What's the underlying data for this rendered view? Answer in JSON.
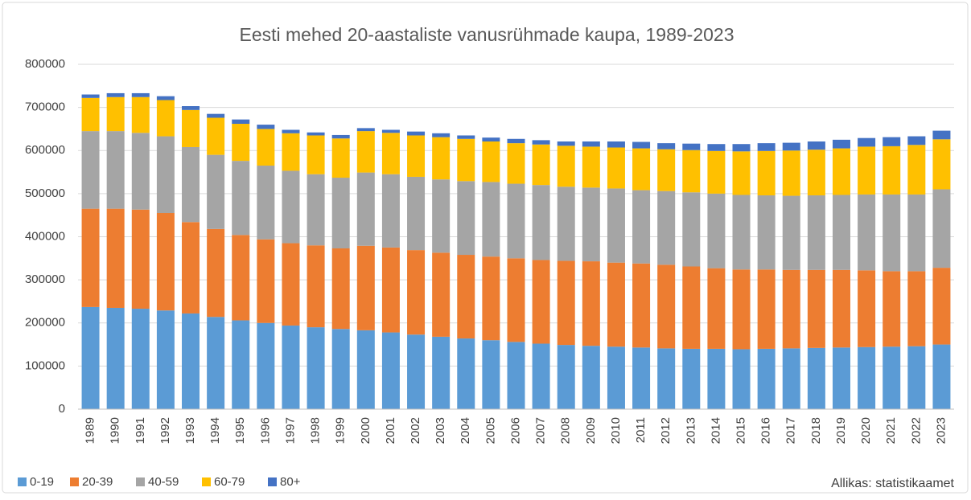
{
  "chart_data": {
    "type": "stacked_bar",
    "title": "Eesti mehed 20-aastaliste vanusrühmade kaupa, 1989-2023",
    "note": "Allikas: statistikaamet",
    "categories": [
      "1989",
      "1990",
      "1991",
      "1992",
      "1993",
      "1994",
      "1995",
      "1996",
      "1997",
      "1998",
      "1999",
      "2000",
      "2001",
      "2002",
      "2003",
      "2004",
      "2005",
      "2006",
      "2007",
      "2008",
      "2009",
      "2010",
      "2011",
      "2012",
      "2013",
      "2014",
      "2015",
      "2016",
      "2017",
      "2018",
      "2019",
      "2020",
      "2021",
      "2022",
      "2023"
    ],
    "series": [
      {
        "name": "0-19",
        "color": "#5b9bd5",
        "values": [
          237000,
          235000,
          233000,
          229000,
          222000,
          214000,
          206000,
          200000,
          194000,
          190000,
          186000,
          183000,
          178000,
          173000,
          168000,
          164000,
          160000,
          156000,
          152000,
          149000,
          147000,
          145000,
          143000,
          141000,
          140000,
          140000,
          139000,
          140000,
          141000,
          142000,
          143000,
          144000,
          145000,
          146000,
          150000
        ]
      },
      {
        "name": "20-39",
        "color": "#ed7d31",
        "values": [
          228000,
          230000,
          230000,
          226000,
          212000,
          204000,
          198000,
          194000,
          191000,
          190000,
          187000,
          196000,
          197000,
          196000,
          195000,
          194000,
          194000,
          194000,
          194000,
          195000,
          196000,
          195000,
          195000,
          194000,
          191000,
          187000,
          185000,
          184000,
          182000,
          181000,
          180000,
          178000,
          175000,
          174000,
          178000
        ]
      },
      {
        "name": "40-59",
        "color": "#a5a5a5",
        "values": [
          180000,
          180000,
          178000,
          178000,
          174000,
          172000,
          172000,
          171000,
          168000,
          165000,
          164000,
          170000,
          170000,
          170000,
          170000,
          171000,
          173000,
          173000,
          174000,
          172000,
          171000,
          172000,
          170000,
          171000,
          172000,
          173000,
          173000,
          172000,
          172000,
          173000,
          174000,
          176000,
          178000,
          178000,
          182000
        ]
      },
      {
        "name": "60-79",
        "color": "#ffc000",
        "values": [
          77000,
          79000,
          83000,
          84000,
          86000,
          86000,
          86000,
          85000,
          87000,
          90000,
          91000,
          96000,
          96000,
          96000,
          98000,
          98000,
          94000,
          94000,
          94000,
          95000,
          95000,
          95000,
          97000,
          97000,
          98000,
          99000,
          101000,
          103000,
          105000,
          106000,
          108000,
          111000,
          112000,
          115000,
          116000
        ]
      },
      {
        "name": "80+",
        "color": "#4472c4",
        "values": [
          8000,
          9000,
          9000,
          9000,
          9000,
          9000,
          10000,
          10000,
          8000,
          7000,
          8000,
          7000,
          7000,
          9000,
          9000,
          8000,
          9000,
          10000,
          10000,
          10000,
          12000,
          14000,
          15000,
          14000,
          15000,
          16000,
          17000,
          18000,
          18000,
          19000,
          20000,
          20000,
          21000,
          20000,
          20000
        ]
      }
    ],
    "ylim": [
      0,
      800000
    ],
    "yticks": [
      0,
      100000,
      200000,
      300000,
      400000,
      500000,
      600000,
      700000,
      800000
    ],
    "grid": true,
    "legend": "bottom-left"
  }
}
